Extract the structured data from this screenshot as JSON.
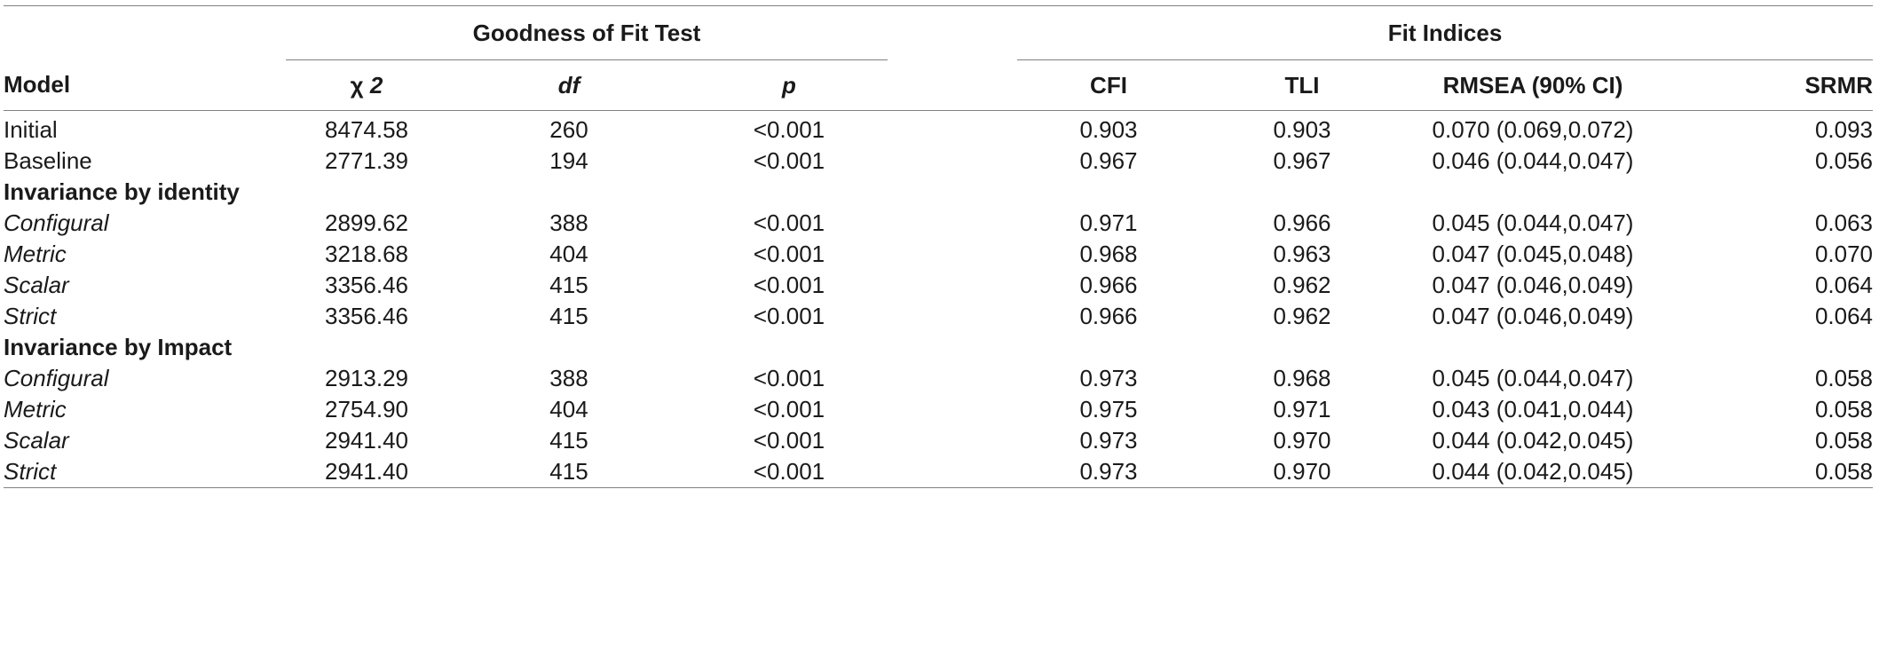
{
  "table": {
    "group_headers": {
      "goodness_of_fit": "Goodness of Fit Test",
      "fit_indices": "Fit Indices"
    },
    "columns": {
      "model": "Model",
      "chi_symbol": "χ",
      "chi_sup": "2",
      "df": "df",
      "p": "p",
      "cfi": "CFI",
      "tli": "TLI",
      "rmsea": "RMSEA (90% CI)",
      "srmr": "SRMR"
    },
    "rows": [
      {
        "model": "Initial",
        "chi2": "8474.58",
        "df": "260",
        "p": "<0.001",
        "cfi": "0.903",
        "tli": "0.903",
        "rmsea": "0.070 (0.069,0.072)",
        "srmr": "0.093"
      },
      {
        "model": "Baseline",
        "chi2": "2771.39",
        "df": "194",
        "p": "<0.001",
        "cfi": "0.967",
        "tli": "0.967",
        "rmsea": "0.046 (0.044,0.047)",
        "srmr": "0.056"
      }
    ],
    "sections": [
      {
        "title": "Invariance by identity",
        "rows": [
          {
            "model": "Configural",
            "chi2": "2899.62",
            "df": "388",
            "p": "<0.001",
            "cfi": "0.971",
            "tli": "0.966",
            "rmsea": "0.045 (0.044,0.047)",
            "srmr": "0.063"
          },
          {
            "model": "Metric",
            "chi2": "3218.68",
            "df": "404",
            "p": "<0.001",
            "cfi": "0.968",
            "tli": "0.963",
            "rmsea": "0.047 (0.045,0.048)",
            "srmr": "0.070"
          },
          {
            "model": "Scalar",
            "chi2": "3356.46",
            "df": "415",
            "p": "<0.001",
            "cfi": "0.966",
            "tli": "0.962",
            "rmsea": "0.047 (0.046,0.049)",
            "srmr": "0.064"
          },
          {
            "model": "Strict",
            "chi2": "3356.46",
            "df": "415",
            "p": "<0.001",
            "cfi": "0.966",
            "tli": "0.962",
            "rmsea": "0.047 (0.046,0.049)",
            "srmr": "0.064"
          }
        ]
      },
      {
        "title": "Invariance by Impact",
        "rows": [
          {
            "model": "Configural",
            "chi2": "2913.29",
            "df": "388",
            "p": "<0.001",
            "cfi": "0.973",
            "tli": "0.968",
            "rmsea": "0.045 (0.044,0.047)",
            "srmr": "0.058"
          },
          {
            "model": "Metric",
            "chi2": "2754.90",
            "df": "404",
            "p": "<0.001",
            "cfi": "0.975",
            "tli": "0.971",
            "rmsea": "0.043 (0.041,0.044)",
            "srmr": "0.058"
          },
          {
            "model": "Scalar",
            "chi2": "2941.40",
            "df": "415",
            "p": "<0.001",
            "cfi": "0.973",
            "tli": "0.970",
            "rmsea": "0.044 (0.042,0.045)",
            "srmr": "0.058"
          },
          {
            "model": "Strict",
            "chi2": "2941.40",
            "df": "415",
            "p": "<0.001",
            "cfi": "0.973",
            "tli": "0.970",
            "rmsea": "0.044 (0.042,0.045)",
            "srmr": "0.058"
          }
        ]
      }
    ]
  }
}
